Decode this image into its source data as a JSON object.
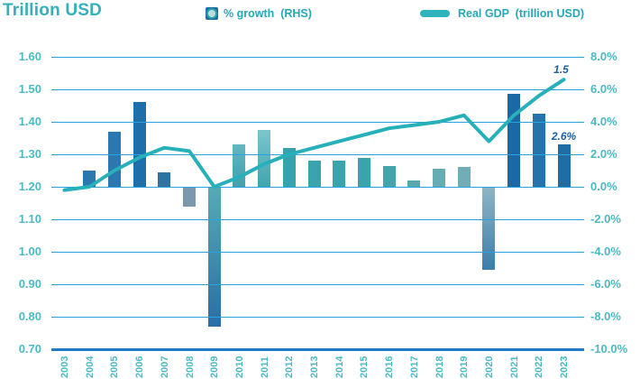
{
  "title": "Trillion USD",
  "legend": {
    "growth_label": "% growth  (RHS)",
    "gdp_label": "Real GDP  (trillion USD)"
  },
  "colors": {
    "title_teal": "#35afb8",
    "legend_teal": "#27a7b3",
    "tick_teal": "#4db9c3",
    "grid_blue": "#2aa2de",
    "axis_blue": "#1f7ac9",
    "line_teal": "#27b0ba",
    "annotation_navy": "#1d5e9e",
    "legend_bar_icon_blue": "#1e6ca3"
  },
  "chart_data": {
    "type": "combo-bar-line",
    "title": "Trillion USD",
    "categories": [
      "2003",
      "2004",
      "2005",
      "2006",
      "2007",
      "2008",
      "2009",
      "2010",
      "2011",
      "2012",
      "2013",
      "2014",
      "2015",
      "2016",
      "2017",
      "2018",
      "2019",
      "2020",
      "2021",
      "2022",
      "2023"
    ],
    "series": [
      {
        "name": "% growth (RHS)",
        "type": "bar",
        "axis": "right",
        "unit": "%",
        "values": [
          null,
          1.0,
          3.4,
          5.2,
          0.9,
          -1.2,
          -8.6,
          2.6,
          3.5,
          2.4,
          1.6,
          1.6,
          1.8,
          1.3,
          0.4,
          1.1,
          1.2,
          -5.1,
          5.7,
          4.5,
          2.6
        ],
        "bar_colors": [
          null,
          [
            "#2b77ae",
            "#2b77ae"
          ],
          [
            "#2b77ae",
            "#2b77ae"
          ],
          [
            "#1e6fa9",
            "#1e6fa9"
          ],
          [
            "#30739f",
            "#30739f"
          ],
          [
            "#7b98ae",
            "#7b98ae"
          ],
          [
            "#55abb4",
            "#2d6da4"
          ],
          [
            "#63b7c1",
            "#41a0ac"
          ],
          [
            "#7cc5cc",
            "#3fa5b0"
          ],
          [
            "#36a2ad",
            "#36a2ad"
          ],
          [
            "#39a3ae",
            "#39a3ae"
          ],
          [
            "#39a3ae",
            "#39a3ae"
          ],
          [
            "#39a3ae",
            "#39a3ae"
          ],
          [
            "#44a5ad",
            "#44a5ad"
          ],
          [
            "#58a9ae",
            "#58a9ae"
          ],
          [
            "#67abb3",
            "#67abb3"
          ],
          [
            "#70adb5",
            "#70adb5"
          ],
          [
            "#90b5c5",
            "#3c7da9"
          ],
          [
            "#1a68a6",
            "#1a68a6"
          ],
          [
            "#2673a9",
            "#2673a9"
          ],
          [
            "#1e6da6",
            "#1e6da6"
          ]
        ]
      },
      {
        "name": "Real GDP (trillion USD)",
        "type": "line",
        "axis": "left",
        "unit": "trillion USD",
        "values": [
          1.19,
          1.2,
          1.25,
          1.29,
          1.32,
          1.31,
          1.2,
          1.23,
          1.27,
          1.3,
          1.32,
          1.34,
          1.36,
          1.38,
          1.39,
          1.4,
          1.42,
          1.34,
          1.42,
          1.48,
          1.53
        ]
      }
    ],
    "left_axis": {
      "label": "Trillion USD",
      "ticks": [
        "1.60",
        "1.50",
        "1.40",
        "1.30",
        "1.20",
        "1.10",
        "1.00",
        "0.90",
        "0.80",
        "0.70"
      ],
      "min": 0.7,
      "max": 1.6
    },
    "right_axis": {
      "ticks": [
        "8.0%",
        "6.0%",
        "4.0%",
        "2.0%",
        "0.0%",
        "-2.0%",
        "-4.0%",
        "-6.0%",
        "-8.0%",
        "-10.0%"
      ],
      "min": -10.0,
      "max": 8.0
    },
    "annotations": [
      {
        "text": "1.5",
        "series": "line",
        "year": "2023"
      },
      {
        "text": "2.6%",
        "series": "bar",
        "year": "2023"
      }
    ],
    "grid": true,
    "legend_position": "top"
  }
}
